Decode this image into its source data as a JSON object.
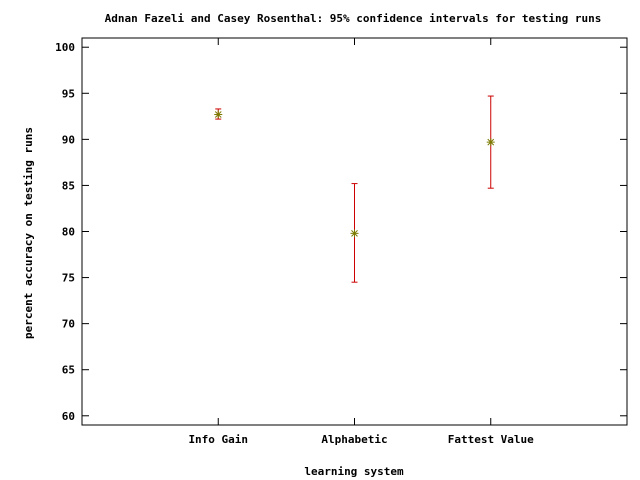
{
  "chart_data": {
    "type": "scatter",
    "title": "Adnan Fazeli and Casey Rosenthal: 95% confidence intervals for testing runs",
    "xlabel": "learning system",
    "ylabel": "percent accuracy on testing runs",
    "categories": [
      "Info Gain",
      "Alphabetic",
      "Fattest Value"
    ],
    "series": [
      {
        "points": [
          {
            "category": "Info Gain",
            "y": 92.7,
            "low": 92.2,
            "high": 93.3
          },
          {
            "category": "Alphabetic",
            "y": 79.8,
            "low": 74.5,
            "high": 85.2
          },
          {
            "category": "Fattest Value",
            "y": 89.7,
            "low": 84.7,
            "high": 94.7
          }
        ]
      }
    ],
    "ylim": [
      59,
      101
    ],
    "yticks": [
      60,
      65,
      70,
      75,
      80,
      85,
      90,
      95,
      100
    ],
    "grid": false,
    "colors": {
      "errorbar": "#cc0000",
      "marker": "#7a7a00",
      "axis": "#000000"
    }
  }
}
